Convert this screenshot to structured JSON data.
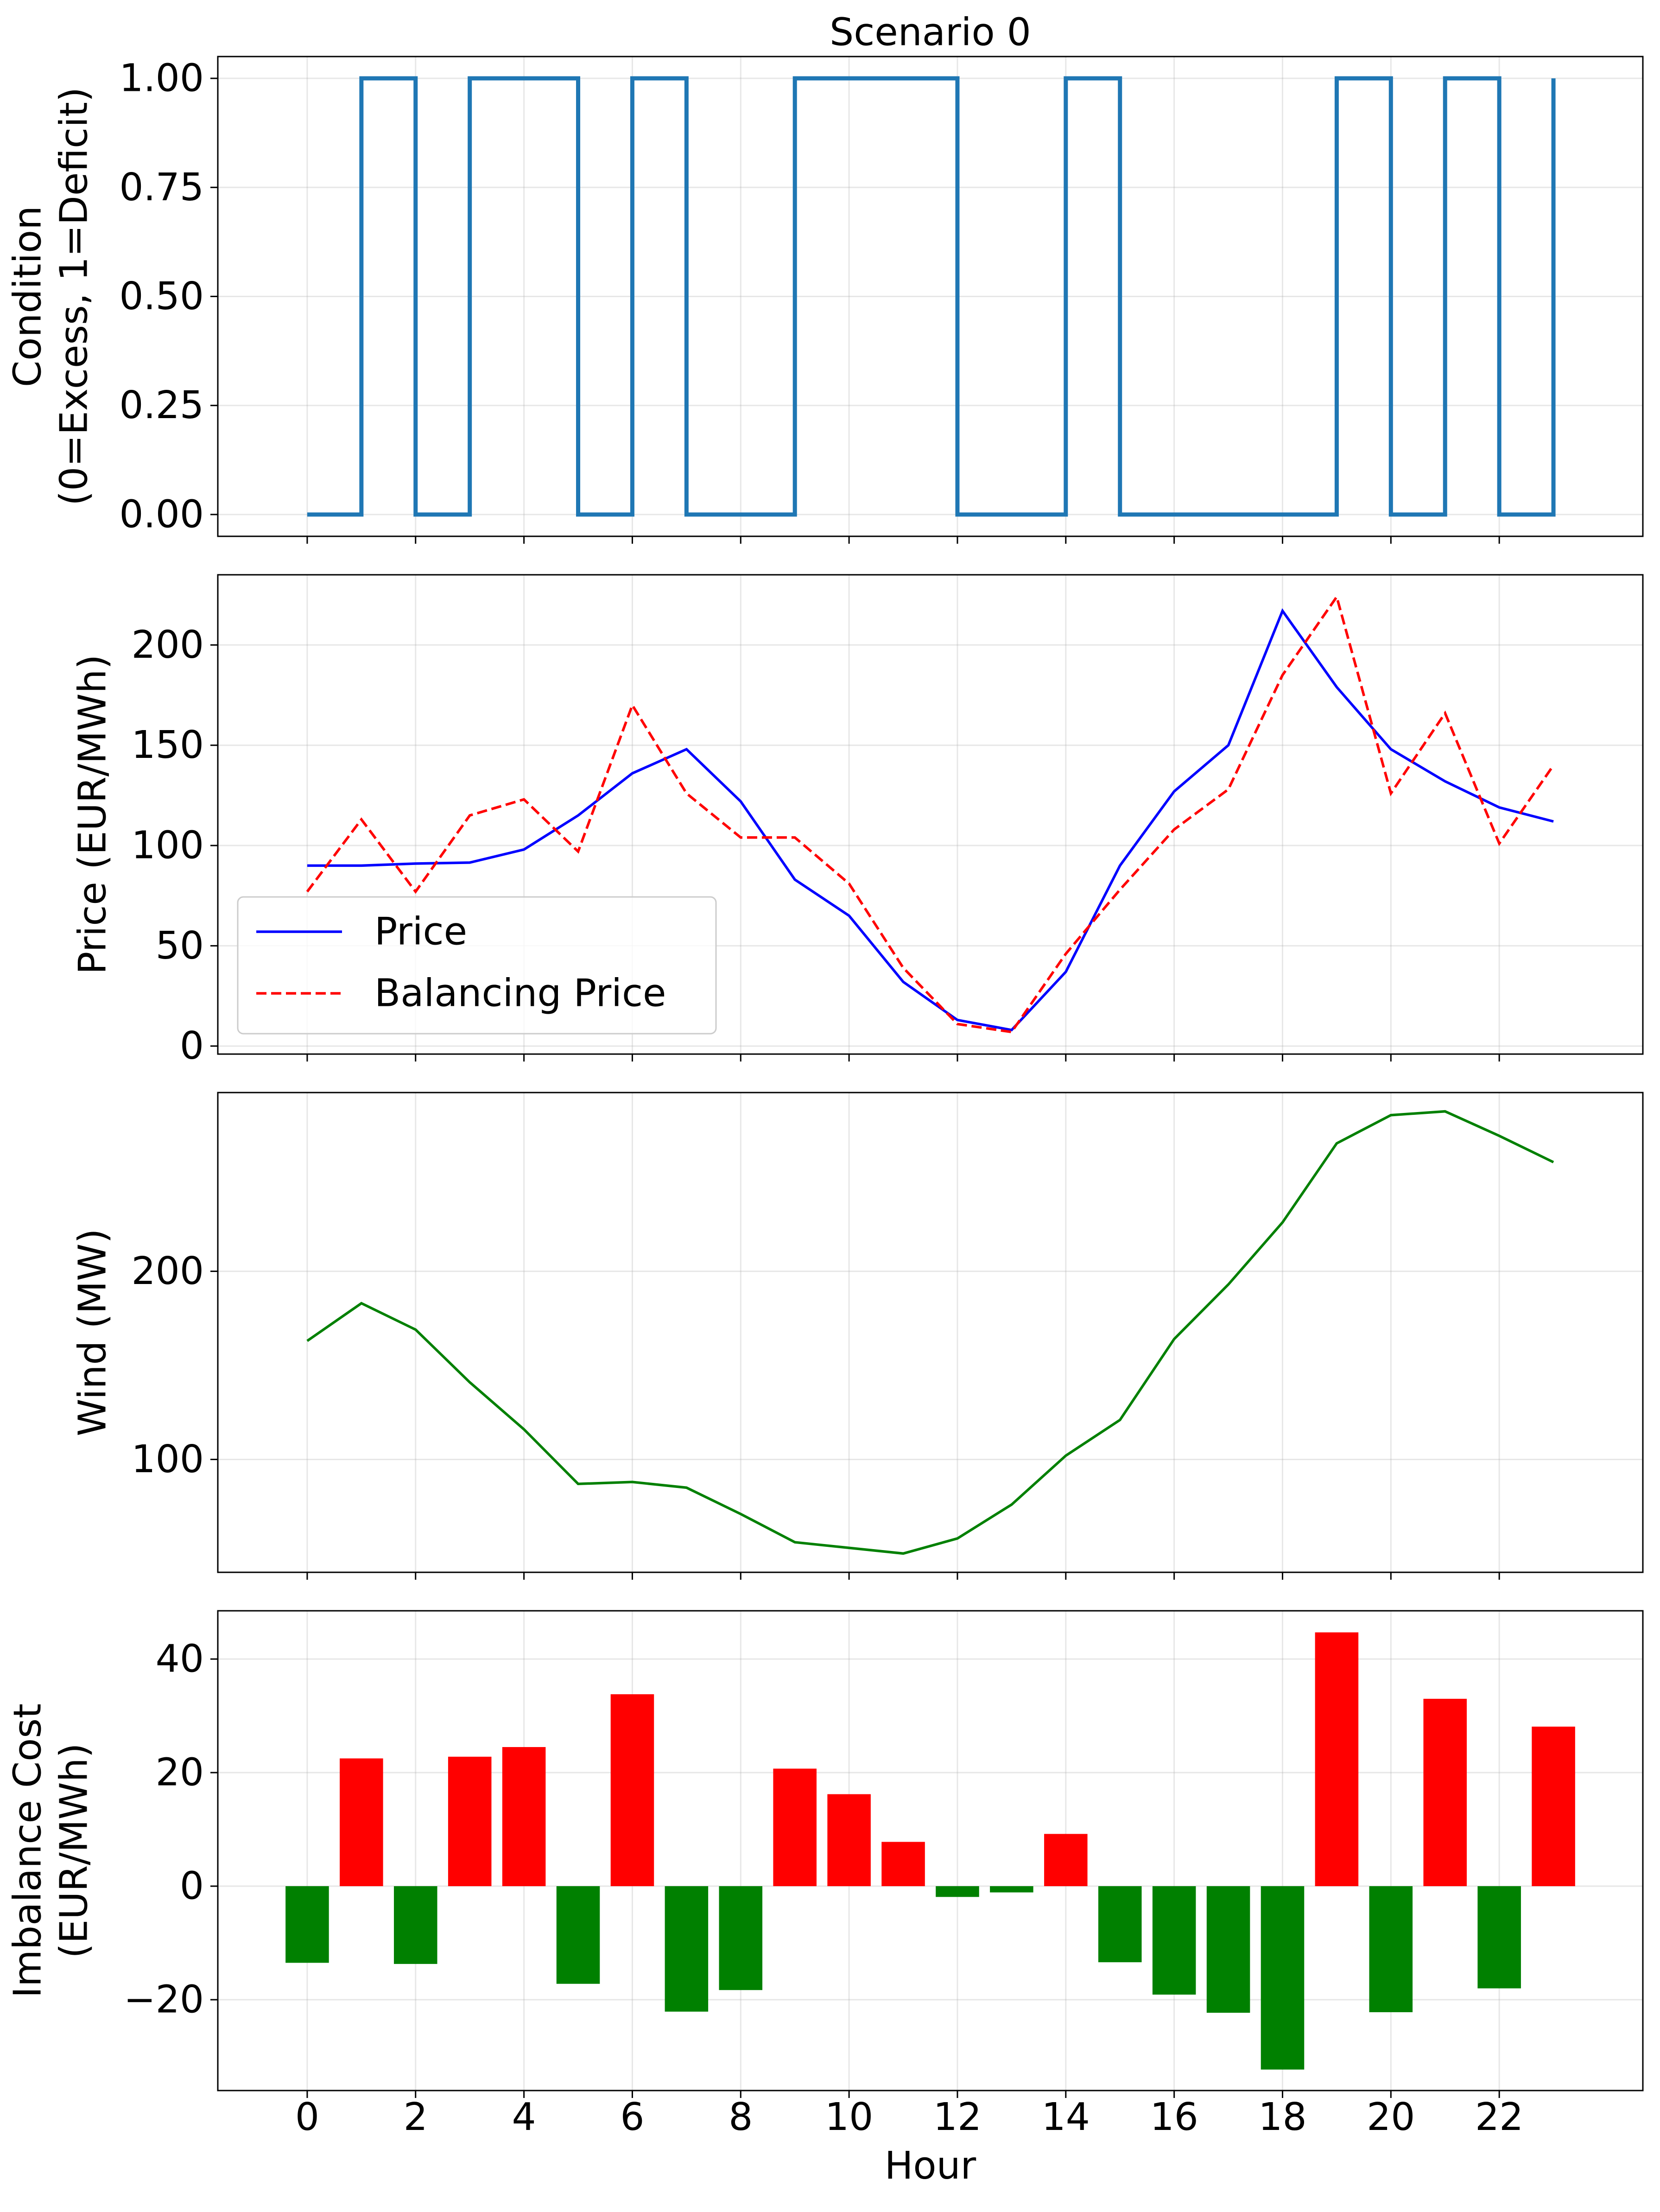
{
  "chart_data": [
    {
      "type": "line",
      "step": "post",
      "title": "Scenario 0",
      "xlabel": "",
      "ylabel": "Condition\n(0=Excess, 1=Deficit)",
      "x": [
        0,
        1,
        2,
        3,
        4,
        5,
        6,
        7,
        8,
        9,
        10,
        11,
        12,
        13,
        14,
        15,
        16,
        17,
        18,
        19,
        20,
        21,
        22,
        23
      ],
      "series": [
        {
          "color": "#1f77b4",
          "values": [
            0,
            1,
            0,
            1,
            1,
            0,
            1,
            0,
            0,
            1,
            1,
            1,
            0,
            0,
            1,
            0,
            0,
            0,
            0,
            1,
            0,
            1,
            0,
            1
          ]
        }
      ],
      "ylim": [
        -0.05,
        1.05
      ],
      "yticks": [
        0.0,
        0.25,
        0.5,
        0.75,
        1.0
      ],
      "ytick_labels": [
        "0.00",
        "0.25",
        "0.50",
        "0.75",
        "1.00"
      ],
      "grid": true
    },
    {
      "type": "line",
      "xlabel": "",
      "ylabel": "Price (EUR/MWh)",
      "x": [
        0,
        1,
        2,
        3,
        4,
        5,
        6,
        7,
        8,
        9,
        10,
        11,
        12,
        13,
        14,
        15,
        16,
        17,
        18,
        19,
        20,
        21,
        22,
        23
      ],
      "series": [
        {
          "name": "Price",
          "color": "#0000ff",
          "dash": "solid",
          "values": [
            90,
            90,
            91,
            91.5,
            98,
            115,
            136,
            148,
            122,
            83,
            65,
            32,
            13,
            8,
            37,
            90,
            127,
            150,
            217,
            179,
            148,
            132,
            119,
            112
          ]
        },
        {
          "name": "Balancing Price",
          "color": "#ff0000",
          "dash": "dashed",
          "values": [
            77,
            113,
            77,
            115,
            123,
            97,
            170,
            126,
            104,
            104,
            81,
            39,
            11,
            7,
            46,
            78,
            108,
            128,
            185,
            224,
            126,
            166,
            101,
            140
          ]
        }
      ],
      "ylim": [
        -4,
        235
      ],
      "yticks": [
        0,
        50,
        100,
        150,
        200
      ],
      "ytick_labels": [
        "0",
        "50",
        "100",
        "150",
        "200"
      ],
      "legend": "lower-left",
      "grid": true
    },
    {
      "type": "line",
      "xlabel": "",
      "ylabel": "Wind (MW)",
      "x": [
        0,
        1,
        2,
        3,
        4,
        5,
        6,
        7,
        8,
        9,
        10,
        11,
        12,
        13,
        14,
        15,
        16,
        17,
        18,
        19,
        20,
        21,
        22,
        23
      ],
      "series": [
        {
          "color": "#008000",
          "values": [
            163,
            183,
            169,
            141,
            116,
            87,
            88,
            85,
            71,
            56,
            53,
            50,
            58,
            76,
            102,
            121,
            164,
            193,
            226,
            268,
            283,
            285,
            272,
            258
          ]
        }
      ],
      "ylim": [
        40,
        295
      ],
      "yticks": [
        100,
        200
      ],
      "ytick_labels": [
        "100",
        "200"
      ],
      "grid": true
    },
    {
      "type": "bar",
      "xlabel": "Hour",
      "ylabel": "Imbalance Cost\n(EUR/MWh)",
      "x": [
        0,
        1,
        2,
        3,
        4,
        5,
        6,
        7,
        8,
        9,
        10,
        11,
        12,
        13,
        14,
        15,
        16,
        17,
        18,
        19,
        20,
        21,
        22,
        23
      ],
      "values": [
        -13.5,
        22.5,
        -13.7,
        22.8,
        24.5,
        -17.2,
        33.8,
        -22.1,
        -18.3,
        20.7,
        16.2,
        7.8,
        -1.9,
        -1.1,
        9.2,
        -13.4,
        -19.1,
        -22.3,
        -32.3,
        44.7,
        -22.2,
        33.0,
        -18.0,
        28.1
      ],
      "positive_color": "#ff0000",
      "negative_color": "#008000",
      "ylim": [
        -36,
        48.5
      ],
      "yticks": [
        -20,
        0,
        20,
        40
      ],
      "ytick_labels": [
        "−20",
        "0",
        "20",
        "40"
      ],
      "xticks": [
        0,
        2,
        4,
        6,
        8,
        10,
        12,
        14,
        16,
        18,
        20,
        22
      ],
      "xtick_labels": [
        "0",
        "2",
        "4",
        "6",
        "8",
        "10",
        "12",
        "14",
        "16",
        "18",
        "20",
        "22"
      ],
      "grid": true
    }
  ]
}
